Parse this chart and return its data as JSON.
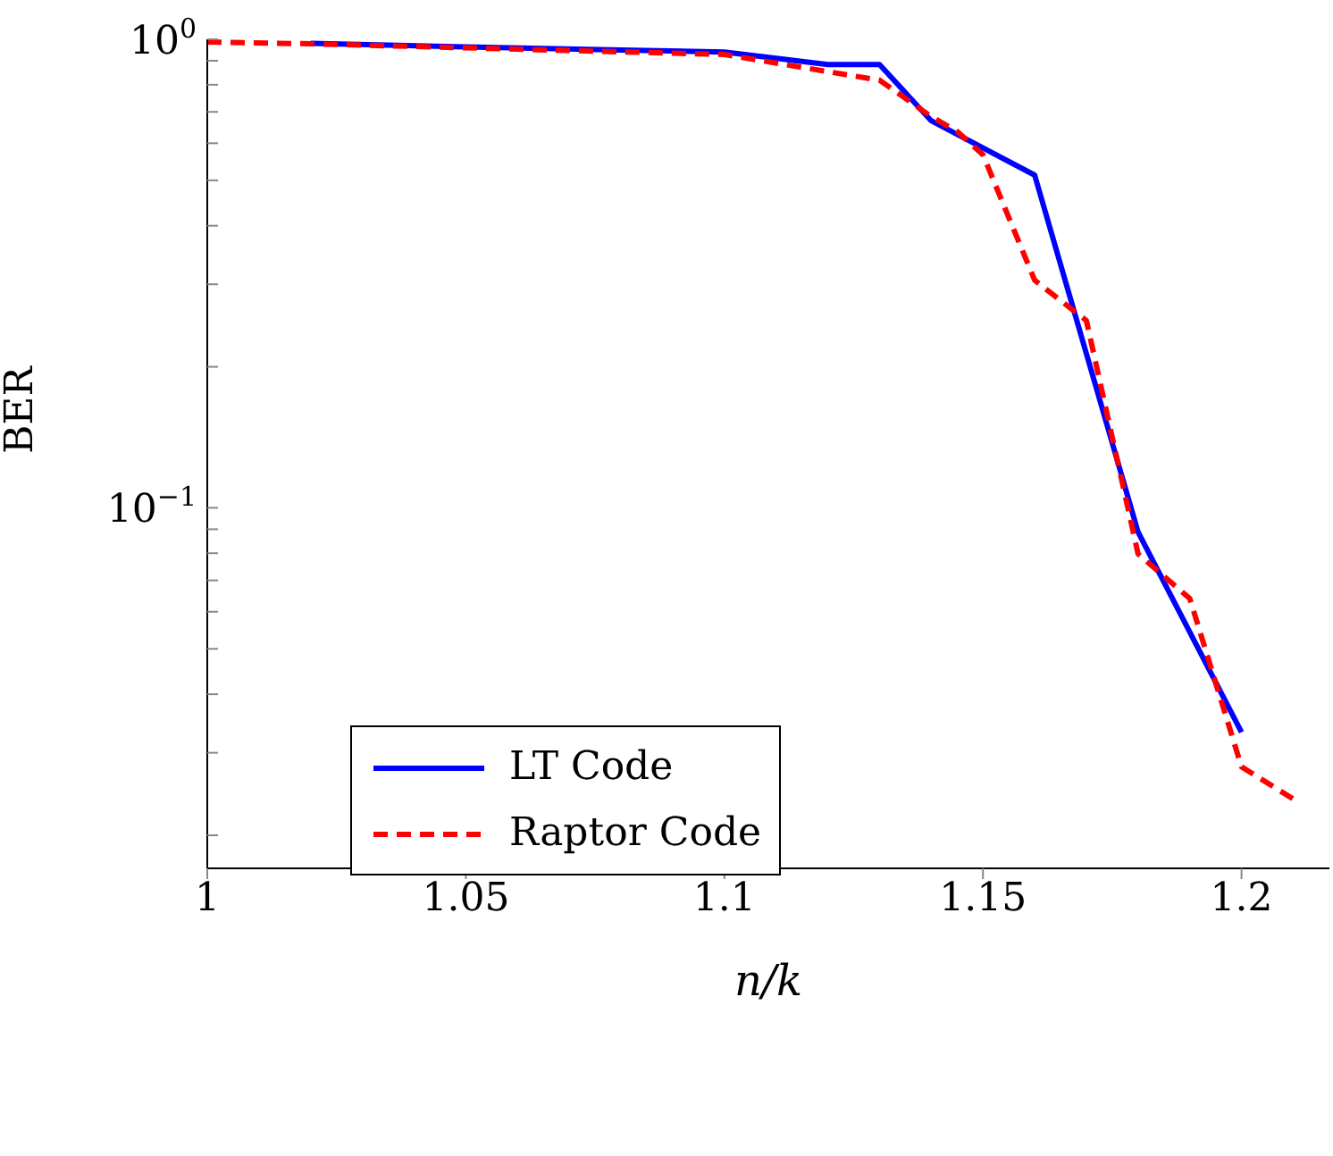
{
  "chart_data": {
    "type": "line",
    "xlabel": "n/k",
    "ylabel": "BER",
    "log": "y",
    "xlim": [
      1,
      1.217
    ],
    "xticks": [
      1,
      1.05,
      1.1,
      1.15,
      1.2
    ],
    "ylim": [
      0.017,
      1
    ],
    "yticks": [
      {
        "value": 0.02,
        "label": null
      },
      {
        "value": 0.03,
        "label": null
      },
      {
        "value": 0.04,
        "label": null
      },
      {
        "value": 0.05,
        "label": null
      },
      {
        "value": 0.06,
        "label": null
      },
      {
        "value": 0.07,
        "label": null
      },
      {
        "value": 0.08,
        "label": null
      },
      {
        "value": 0.09,
        "label": null
      },
      {
        "value": 0.1,
        "label": "10$^{−1}$"
      },
      {
        "value": 0.2,
        "label": null
      },
      {
        "value": 0.3,
        "label": null
      },
      {
        "value": 0.4,
        "label": null
      },
      {
        "value": 0.5,
        "label": null
      },
      {
        "value": 0.6,
        "label": null
      },
      {
        "value": 0.7,
        "label": null
      },
      {
        "value": 0.8,
        "label": null
      },
      {
        "value": 0.9,
        "label": null
      },
      {
        "value": 1,
        "label": "10$^{0}$"
      }
    ],
    "grid": false,
    "legend": "bottom left",
    "marker": "none",
    "series": [
      {
        "name": "LT Code",
        "color": "#0000ff",
        "line_style": "solid",
        "x": [
          1.02,
          1.05,
          1.08,
          1.1,
          1.12,
          1.13,
          1.14,
          1.16,
          1.18,
          1.2
        ],
        "values": [
          0.98,
          0.963,
          0.949,
          0.939,
          0.883,
          0.883,
          0.67,
          0.513,
          0.0887,
          0.0332
        ]
      },
      {
        "name": "Raptor Code",
        "color": "#ff0000",
        "line_style": "dashed",
        "x": [
          1,
          1.02,
          1.1,
          1.13,
          1.14,
          1.145,
          1.15,
          1.16,
          1.17,
          1.18,
          1.19,
          1.2,
          1.21
        ],
        "values": [
          0.987,
          0.978,
          0.928,
          0.818,
          0.684,
          0.636,
          0.567,
          0.306,
          0.251,
          0.0797,
          0.064,
          0.028,
          0.0239
        ]
      }
    ]
  }
}
